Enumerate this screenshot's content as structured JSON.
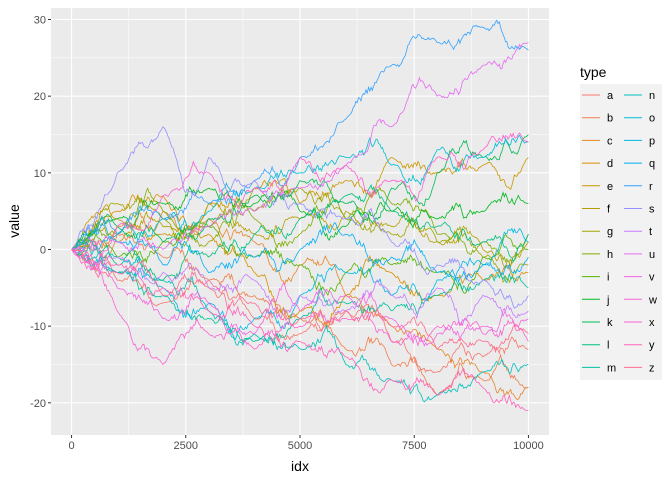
{
  "chart_data": {
    "type": "line",
    "title": "",
    "xlabel": "idx",
    "ylabel": "value",
    "xlim": [
      -450,
      10450
    ],
    "ylim": [
      -24.2,
      31.5
    ],
    "x_ticks": [
      0,
      2500,
      5000,
      7500,
      10000
    ],
    "x_tick_labels": [
      "0",
      "2500",
      "5000",
      "7500",
      "10000"
    ],
    "y_ticks": [
      -20,
      -10,
      0,
      10,
      20,
      30
    ],
    "y_tick_labels": [
      "-20",
      "-10",
      "0",
      "10",
      "20",
      "30"
    ],
    "grid": true,
    "legend": {
      "title": "type",
      "position": "right"
    },
    "series": [
      {
        "name": "a",
        "color": "#F8766D",
        "x": [
          0,
          1000,
          2000,
          3000,
          4000,
          5000,
          6000,
          7000,
          8000,
          9000,
          10000
        ],
        "y": [
          0,
          -4,
          -7,
          -5,
          -9,
          -11,
          -8,
          -12,
          -16,
          -14,
          -13
        ]
      },
      {
        "name": "b",
        "color": "#F07E4D",
        "x": [
          0,
          1000,
          2000,
          3000,
          4000,
          5000,
          6000,
          7000,
          8000,
          9000,
          10000
        ],
        "y": [
          0,
          2,
          -1,
          -4,
          -6,
          -9,
          -13,
          -15,
          -19,
          -17,
          -18
        ]
      },
      {
        "name": "c",
        "color": "#E6862C",
        "x": [
          0,
          1000,
          2000,
          3000,
          4000,
          5000,
          6000,
          7000,
          8000,
          9000,
          10000
        ],
        "y": [
          0,
          3,
          5,
          4,
          1,
          -2,
          -6,
          -10,
          -13,
          -16,
          -18
        ]
      },
      {
        "name": "d",
        "color": "#D98E00",
        "x": [
          0,
          1000,
          2000,
          3000,
          4000,
          5000,
          6000,
          7000,
          8000,
          9000,
          10000
        ],
        "y": [
          0,
          5,
          7,
          2,
          -3,
          -8,
          -6,
          -3,
          -6,
          -4,
          -3
        ]
      },
      {
        "name": "e",
        "color": "#C99800",
        "x": [
          0,
          1000,
          2000,
          3000,
          4000,
          5000,
          6000,
          7000,
          8000,
          9000,
          10000
        ],
        "y": [
          0,
          4,
          2,
          6,
          8,
          6,
          9,
          12,
          10,
          11,
          12
        ]
      },
      {
        "name": "f",
        "color": "#B59F00",
        "x": [
          0,
          1000,
          2000,
          3000,
          4000,
          5000,
          6000,
          7000,
          8000,
          9000,
          10000
        ],
        "y": [
          0,
          1,
          3,
          6,
          2,
          4,
          5,
          3,
          1,
          0,
          1
        ]
      },
      {
        "name": "g",
        "color": "#9EA700",
        "x": [
          0,
          1000,
          2000,
          3000,
          4000,
          5000,
          6000,
          7000,
          8000,
          9000,
          10000
        ],
        "y": [
          0,
          6,
          4,
          1,
          5,
          8,
          4,
          2,
          1,
          -1,
          -2
        ]
      },
      {
        "name": "h",
        "color": "#80AD00",
        "x": [
          0,
          1000,
          2000,
          3000,
          4000,
          5000,
          6000,
          7000,
          8000,
          9000,
          10000
        ],
        "y": [
          0,
          2,
          5,
          3,
          4,
          2,
          4,
          6,
          2,
          1,
          2
        ]
      },
      {
        "name": "i",
        "color": "#53B400",
        "x": [
          0,
          1000,
          2000,
          3000,
          4000,
          5000,
          6000,
          7000,
          8000,
          9000,
          10000
        ],
        "y": [
          0,
          -1,
          1,
          3,
          -1,
          -2,
          -3,
          -2,
          -3,
          -1,
          0
        ]
      },
      {
        "name": "j",
        "color": "#00B81F",
        "x": [
          0,
          1000,
          2000,
          3000,
          4000,
          5000,
          6000,
          7000,
          8000,
          9000,
          10000
        ],
        "y": [
          0,
          4,
          6,
          8,
          6,
          5,
          3,
          5,
          4,
          5,
          6
        ]
      },
      {
        "name": "k",
        "color": "#00BC56",
        "x": [
          0,
          1000,
          2000,
          3000,
          4000,
          5000,
          6000,
          7000,
          8000,
          9000,
          10000
        ],
        "y": [
          0,
          3,
          1,
          4,
          7,
          9,
          6,
          8,
          10,
          12,
          15
        ]
      },
      {
        "name": "l",
        "color": "#00BF7D",
        "x": [
          0,
          1000,
          2000,
          3000,
          4000,
          5000,
          6000,
          7000,
          8000,
          9000,
          10000
        ],
        "y": [
          0,
          -2,
          -4,
          -1,
          2,
          4,
          7,
          5,
          3,
          1,
          2
        ]
      },
      {
        "name": "m",
        "color": "#00C19F",
        "x": [
          0,
          1000,
          2000,
          3000,
          4000,
          5000,
          6000,
          7000,
          8000,
          9000,
          10000
        ],
        "y": [
          0,
          -3,
          -6,
          -9,
          -12,
          -9,
          -7,
          -8,
          -6,
          -4,
          -5
        ]
      },
      {
        "name": "n",
        "color": "#00C0BC",
        "x": [
          0,
          1000,
          2000,
          3000,
          4000,
          5000,
          6000,
          7000,
          8000,
          9000,
          10000
        ],
        "y": [
          0,
          -1,
          -4,
          -8,
          -11,
          -13,
          -15,
          -17,
          -19,
          -16,
          -15
        ]
      },
      {
        "name": "o",
        "color": "#00BDD6",
        "x": [
          0,
          1000,
          2000,
          3000,
          4000,
          5000,
          6000,
          7000,
          8000,
          9000,
          10000
        ],
        "y": [
          0,
          2,
          4,
          5,
          8,
          10,
          12,
          11,
          13,
          12,
          14
        ]
      },
      {
        "name": "p",
        "color": "#00B8E7",
        "x": [
          0,
          1000,
          2000,
          3000,
          4000,
          5000,
          6000,
          7000,
          8000,
          9000,
          10000
        ],
        "y": [
          0,
          -3,
          -5,
          -7,
          -9,
          -6,
          -3,
          -6,
          -4,
          -2,
          1
        ]
      },
      {
        "name": "q",
        "color": "#00B0F6",
        "x": [
          0,
          1000,
          2000,
          3000,
          4000,
          5000,
          6000,
          7000,
          8000,
          9000,
          10000
        ],
        "y": [
          0,
          1,
          -2,
          -3,
          -1,
          0,
          2,
          -1,
          -3,
          -2,
          -1
        ]
      },
      {
        "name": "r",
        "color": "#35A2FF",
        "x": [
          0,
          1000,
          2000,
          3000,
          4000,
          5000,
          6000,
          7000,
          8000,
          9000,
          10000
        ],
        "y": [
          0,
          2,
          4,
          6,
          9,
          12,
          17,
          24,
          27,
          29,
          26
        ]
      },
      {
        "name": "s",
        "color": "#9590FF",
        "x": [
          0,
          1000,
          2000,
          3000,
          4000,
          5000,
          6000,
          7000,
          8000,
          9000,
          10000
        ],
        "y": [
          0,
          10,
          16,
          12,
          9,
          6,
          4,
          1,
          -2,
          -4,
          -6
        ]
      },
      {
        "name": "t",
        "color": "#C77CFF",
        "x": [
          0,
          1000,
          2000,
          3000,
          4000,
          5000,
          6000,
          7000,
          8000,
          9000,
          10000
        ],
        "y": [
          0,
          -1,
          -3,
          -5,
          -4,
          -6,
          -8,
          -6,
          -5,
          -6,
          -8
        ]
      },
      {
        "name": "u",
        "color": "#E76BF3",
        "x": [
          0,
          1000,
          2000,
          3000,
          4000,
          5000,
          6000,
          7000,
          8000,
          9000,
          10000
        ],
        "y": [
          0,
          1,
          0,
          3,
          5,
          8,
          11,
          16,
          20,
          24,
          27
        ]
      },
      {
        "name": "v",
        "color": "#F564E3",
        "x": [
          0,
          1000,
          2000,
          3000,
          4000,
          5000,
          6000,
          7000,
          8000,
          9000,
          10000
        ],
        "y": [
          0,
          -5,
          -9,
          -7,
          -11,
          -8,
          -6,
          -9,
          -11,
          -10,
          -9
        ]
      },
      {
        "name": "w",
        "color": "#FA62D4",
        "x": [
          0,
          1000,
          2000,
          3000,
          4000,
          5000,
          6000,
          7000,
          8000,
          9000,
          10000
        ],
        "y": [
          0,
          -8,
          -15,
          -11,
          -13,
          -10,
          -9,
          -12,
          -10,
          -11,
          -12
        ]
      },
      {
        "name": "x",
        "color": "#FD61D1",
        "x": [
          0,
          1000,
          2000,
          3000,
          4000,
          5000,
          6000,
          7000,
          8000,
          9000,
          10000
        ],
        "y": [
          0,
          3,
          7,
          10,
          8,
          12,
          11,
          9,
          12,
          13,
          14
        ]
      },
      {
        "name": "y",
        "color": "#FF62BC",
        "x": [
          0,
          1000,
          2000,
          3000,
          4000,
          5000,
          6000,
          7000,
          8000,
          9000,
          10000
        ],
        "y": [
          0,
          -2,
          -5,
          -8,
          -10,
          -12,
          -14,
          -17,
          -19,
          -18,
          -21
        ]
      },
      {
        "name": "z",
        "color": "#FF6C91",
        "x": [
          0,
          1000,
          2000,
          3000,
          4000,
          5000,
          6000,
          7000,
          8000,
          9000,
          10000
        ],
        "y": [
          0,
          -3,
          -6,
          -4,
          -7,
          -9,
          -8,
          -10,
          -13,
          -12,
          -11
        ]
      }
    ]
  }
}
